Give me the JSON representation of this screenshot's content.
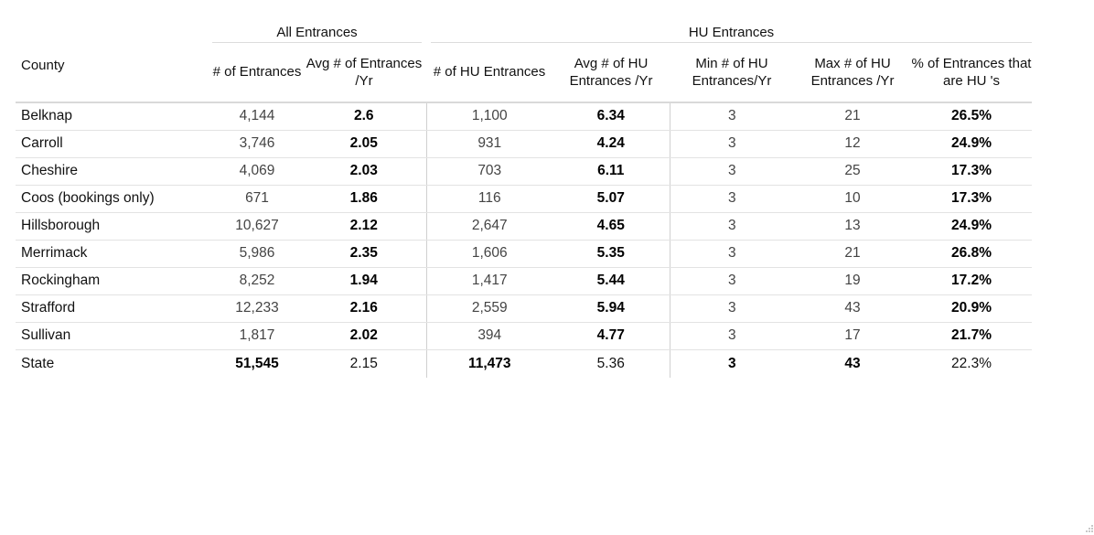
{
  "groups": {
    "all": "All Entrances",
    "hu": "HU Entrances"
  },
  "columns": {
    "county": "County",
    "entrances": "# of Entrances",
    "avg_entrances": "Avg # of Entrances /Yr",
    "hu_entrances": "# of HU Entrances",
    "avg_hu": "Avg # of HU Entrances /Yr",
    "min_hu": "Min # of HU Entrances/Yr",
    "max_hu": "Max # of HU Entrances /Yr",
    "pct_hu": "% of Entrances that are HU 's"
  },
  "rows": [
    {
      "county": "Belknap",
      "entrances": "4,144",
      "avg": "2.6",
      "hu": "1,100",
      "avg_hu": "6.34",
      "min": "3",
      "max": "21",
      "pct": "26.5%"
    },
    {
      "county": "Carroll",
      "entrances": "3,746",
      "avg": "2.05",
      "hu": "931",
      "avg_hu": "4.24",
      "min": "3",
      "max": "12",
      "pct": "24.9%"
    },
    {
      "county": "Cheshire",
      "entrances": "4,069",
      "avg": "2.03",
      "hu": "703",
      "avg_hu": "6.11",
      "min": "3",
      "max": "25",
      "pct": "17.3%"
    },
    {
      "county": "Coos (bookings only)",
      "entrances": "671",
      "avg": "1.86",
      "hu": "116",
      "avg_hu": "5.07",
      "min": "3",
      "max": "10",
      "pct": "17.3%"
    },
    {
      "county": "Hillsborough",
      "entrances": "10,627",
      "avg": "2.12",
      "hu": "2,647",
      "avg_hu": "4.65",
      "min": "3",
      "max": "13",
      "pct": "24.9%"
    },
    {
      "county": "Merrimack",
      "entrances": "5,986",
      "avg": "2.35",
      "hu": "1,606",
      "avg_hu": "5.35",
      "min": "3",
      "max": "21",
      "pct": "26.8%"
    },
    {
      "county": "Rockingham",
      "entrances": "8,252",
      "avg": "1.94",
      "hu": "1,417",
      "avg_hu": "5.44",
      "min": "3",
      "max": "19",
      "pct": "17.2%"
    },
    {
      "county": "Strafford",
      "entrances": "12,233",
      "avg": "2.16",
      "hu": "2,559",
      "avg_hu": "5.94",
      "min": "3",
      "max": "43",
      "pct": "20.9%"
    },
    {
      "county": "Sullivan",
      "entrances": "1,817",
      "avg": "2.02",
      "hu": "394",
      "avg_hu": "4.77",
      "min": "3",
      "max": "17",
      "pct": "21.7%"
    }
  ],
  "total": {
    "county": "State",
    "entrances": "51,545",
    "avg": "2.15",
    "hu": "11,473",
    "avg_hu": "5.36",
    "min": "3",
    "max": "43",
    "pct": "22.3%"
  }
}
